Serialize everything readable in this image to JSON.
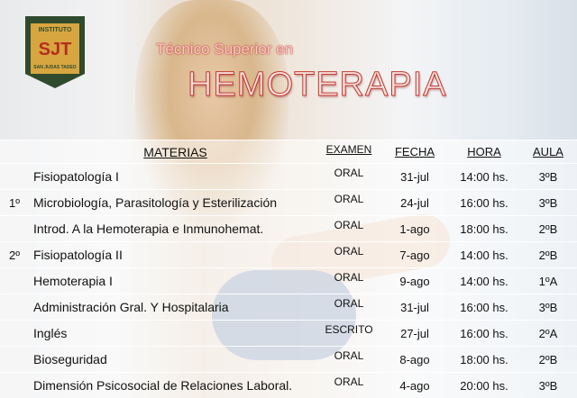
{
  "logo": {
    "top": "INSTITUTO",
    "main": "SJT",
    "bottom": "SAN JUDAS TADEO"
  },
  "title": {
    "subtitle": "Técnico Superior en",
    "main": "HEMOTERAPIA"
  },
  "table": {
    "headers": [
      "MATERIAS",
      "EXAMEN",
      "FECHA",
      "HORA",
      "AULA"
    ],
    "rows": [
      {
        "year": "",
        "materia": "Fisiopatología I",
        "examen": "ORAL",
        "fecha": "31-jul",
        "hora": "14:00 hs.",
        "aula": "3ºB"
      },
      {
        "year": "1º",
        "materia": "Microbiología, Parasitología y Esterilización",
        "examen": "ORAL",
        "fecha": "24-jul",
        "hora": "16:00 hs.",
        "aula": "3ºB"
      },
      {
        "year": "",
        "materia": "Introd. A la Hemoterapia e Inmunohemat.",
        "examen": "ORAL",
        "fecha": "1-ago",
        "hora": "18:00 hs.",
        "aula": "2ºB"
      },
      {
        "year": "2º",
        "materia": "Fisiopatología II",
        "examen": "ORAL",
        "fecha": "7-ago",
        "hora": "14:00 hs.",
        "aula": "2ºB"
      },
      {
        "year": "",
        "materia": "Hemoterapia I",
        "examen": "ORAL",
        "fecha": "9-ago",
        "hora": "14:00 hs.",
        "aula": "1ºA"
      },
      {
        "year": "",
        "materia": "Administración Gral. Y Hospitalaria",
        "examen": "ORAL",
        "fecha": "31-jul",
        "hora": "16:00 hs.",
        "aula": "3ºB"
      },
      {
        "year": "",
        "materia": "Inglés",
        "examen": "ESCRITO",
        "fecha": "27-jul",
        "hora": "16:00 hs.",
        "aula": "2ºA"
      },
      {
        "year": "",
        "materia": "Bioseguridad",
        "examen": "ORAL",
        "fecha": "8-ago",
        "hora": "18:00 hs.",
        "aula": "2ºB"
      },
      {
        "year": "",
        "materia": "Dimensión Psicosocial de Relaciones Laboral.",
        "examen": "ORAL",
        "fecha": "4-ago",
        "hora": "20:00 hs.",
        "aula": "3ºB"
      }
    ]
  },
  "colors": {
    "title_red": "#c0392b",
    "logo_green": "#2f4a2c",
    "logo_gold": "#d8a640"
  }
}
